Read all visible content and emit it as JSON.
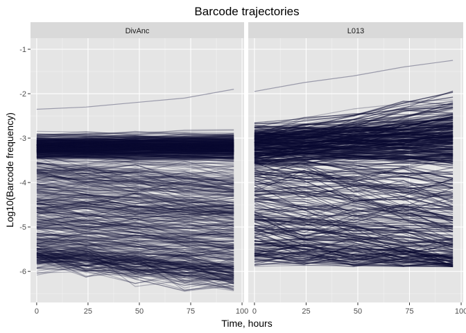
{
  "chart_data": {
    "type": "line",
    "title": "Barcode trajectories",
    "xlabel": "Time, hours",
    "ylabel": "Log10(Barcode frequency)",
    "facets": [
      {
        "label": "DivAnc",
        "x": [
          0,
          24,
          48,
          72,
          96
        ],
        "max_line": [
          -2.35,
          -2.3,
          -2.2,
          -2.1,
          -1.9
        ]
      },
      {
        "label": "L013",
        "x": [
          0,
          24,
          48,
          72,
          96
        ],
        "max_line": [
          -1.95,
          -1.75,
          -1.6,
          -1.4,
          -1.25
        ]
      }
    ],
    "x_ticks": [
      0,
      25,
      50,
      75,
      100
    ],
    "y_ticks": [
      -1,
      -2,
      -3,
      -4,
      -5,
      -6
    ],
    "xlim": [
      -3,
      101
    ],
    "ylim": [
      -6.7,
      -0.75
    ],
    "line_color": "#0a0a32",
    "panel_bg": "#e5e5e5",
    "strip_bg": "#d9d9d9",
    "grid_color": "#ffffff",
    "legend": "none",
    "grid": true
  }
}
